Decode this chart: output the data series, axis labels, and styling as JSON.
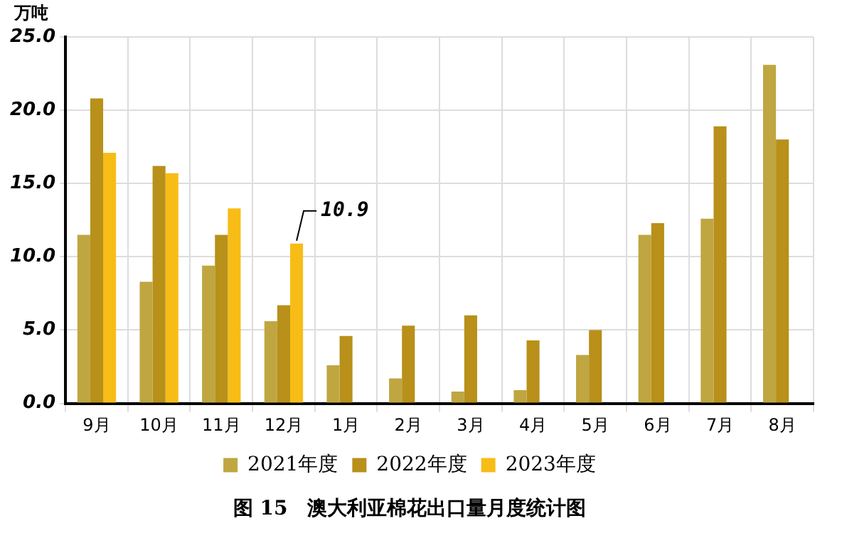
{
  "chart_data": {
    "type": "bar",
    "title": "图 15　澳大利亚棉花出口量月度统计图",
    "ylabel": "万吨",
    "categories": [
      "9月",
      "10月",
      "11月",
      "12月",
      "1月",
      "2月",
      "3月",
      "4月",
      "5月",
      "6月",
      "7月",
      "8月"
    ],
    "series": [
      {
        "name": "2021年度",
        "color": "#bfa640",
        "values": [
          11.5,
          8.3,
          9.4,
          5.6,
          2.6,
          1.7,
          0.8,
          0.9,
          3.3,
          11.5,
          12.6,
          23.1
        ]
      },
      {
        "name": "2022年度",
        "color": "#b8901a",
        "values": [
          20.8,
          16.2,
          11.5,
          6.7,
          4.6,
          5.3,
          6.0,
          4.3,
          5.0,
          12.3,
          18.9,
          18.0
        ]
      },
      {
        "name": "2023年度",
        "color": "#f7bd16",
        "values": [
          17.1,
          15.7,
          13.3,
          10.9,
          null,
          null,
          null,
          null,
          null,
          null,
          null,
          null
        ]
      }
    ],
    "ylim": [
      0,
      25
    ],
    "yticks": [
      {
        "value": 0,
        "label": "0.0"
      },
      {
        "value": 5,
        "label": "5.0"
      },
      {
        "value": 10,
        "label": "10.0"
      },
      {
        "value": 15,
        "label": "15.0"
      },
      {
        "value": 20,
        "label": "20.0"
      },
      {
        "value": 25,
        "label": "25.0"
      }
    ],
    "grid": true,
    "legend": "bottom",
    "annotations": [
      {
        "text": "10.9",
        "x": "12月",
        "y": 10.9
      }
    ]
  }
}
